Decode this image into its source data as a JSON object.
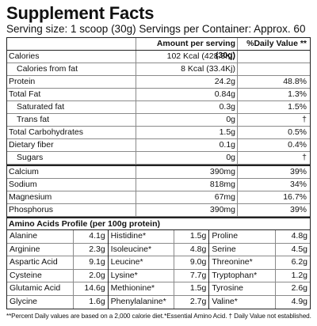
{
  "title": "Supplement Facts",
  "serving_line": "Serving size: 1 scoop (30g) Servings per Container: Approx. 60",
  "table_header": {
    "amount": "Amount per serving (30g)",
    "dv": "%Daily Value **"
  },
  "nutrients": [
    {
      "name": "Calories",
      "amount": "102 Kcal (428.3Kj)",
      "dv": ""
    },
    {
      "name": "Calories from fat",
      "amount": "8 Kcal (33.4Kj)",
      "dv": ""
    },
    {
      "name": "Protein",
      "amount": "24.2g",
      "dv": "48.8%"
    },
    {
      "name": "Total Fat",
      "amount": "0.84g",
      "dv": "1.3%"
    },
    {
      "name": "Saturated fat",
      "amount": "0.3g",
      "dv": "1.5%"
    },
    {
      "name": "Trans fat",
      "amount": "0g",
      "dv": "†"
    },
    {
      "name": "Total Carbohydrates",
      "amount": "1.5g",
      "dv": "0.5%"
    },
    {
      "name": "Dietary fiber",
      "amount": "0.1g",
      "dv": "0.4%"
    },
    {
      "name": "Sugars",
      "amount": "0g",
      "dv": "†"
    },
    {
      "name": "Calcium",
      "amount": "390mg",
      "dv": "39%"
    },
    {
      "name": "Sodium",
      "amount": "818mg",
      "dv": "34%"
    },
    {
      "name": "Magnesium",
      "amount": "67mg",
      "dv": "16.7%"
    },
    {
      "name": "Phosphorus",
      "amount": "390mg",
      "dv": "39%"
    }
  ],
  "amino_title": "Amino Acids Profile (per 100g protein)",
  "amino_cols": [
    [
      {
        "name": "Alanine",
        "value": "4.1g"
      },
      {
        "name": "Arginine",
        "value": "2.3g"
      },
      {
        "name": "Aspartic Acid",
        "value": "9.1g"
      },
      {
        "name": "Cysteine",
        "value": "2.0g"
      },
      {
        "name": "Glutamic Acid",
        "value": "14.6g"
      },
      {
        "name": "Glycine",
        "value": "1.6g"
      }
    ],
    [
      {
        "name": "Histidine*",
        "value": "1.5g"
      },
      {
        "name": "Isoleucine*",
        "value": "4.8g"
      },
      {
        "name": "Leucine*",
        "value": "9.0g"
      },
      {
        "name": "Lysine*",
        "value": "7.7g"
      },
      {
        "name": "Methionine*",
        "value": "1.5g"
      },
      {
        "name": "Phenylalanine*",
        "value": "2.7g"
      }
    ],
    [
      {
        "name": "Proline",
        "value": "4.8g"
      },
      {
        "name": "Serine",
        "value": "4.5g"
      },
      {
        "name": "Threonine*",
        "value": "6.2g"
      },
      {
        "name": "Tryptophan*",
        "value": "1.2g"
      },
      {
        "name": "Tyrosine",
        "value": "2.6g"
      },
      {
        "name": "Valine*",
        "value": "4.9g"
      }
    ]
  ],
  "footnote": "**Percent Daily values are based on a 2,000 calorie diet.*Essential Amino Acid. † Daily Value not established."
}
